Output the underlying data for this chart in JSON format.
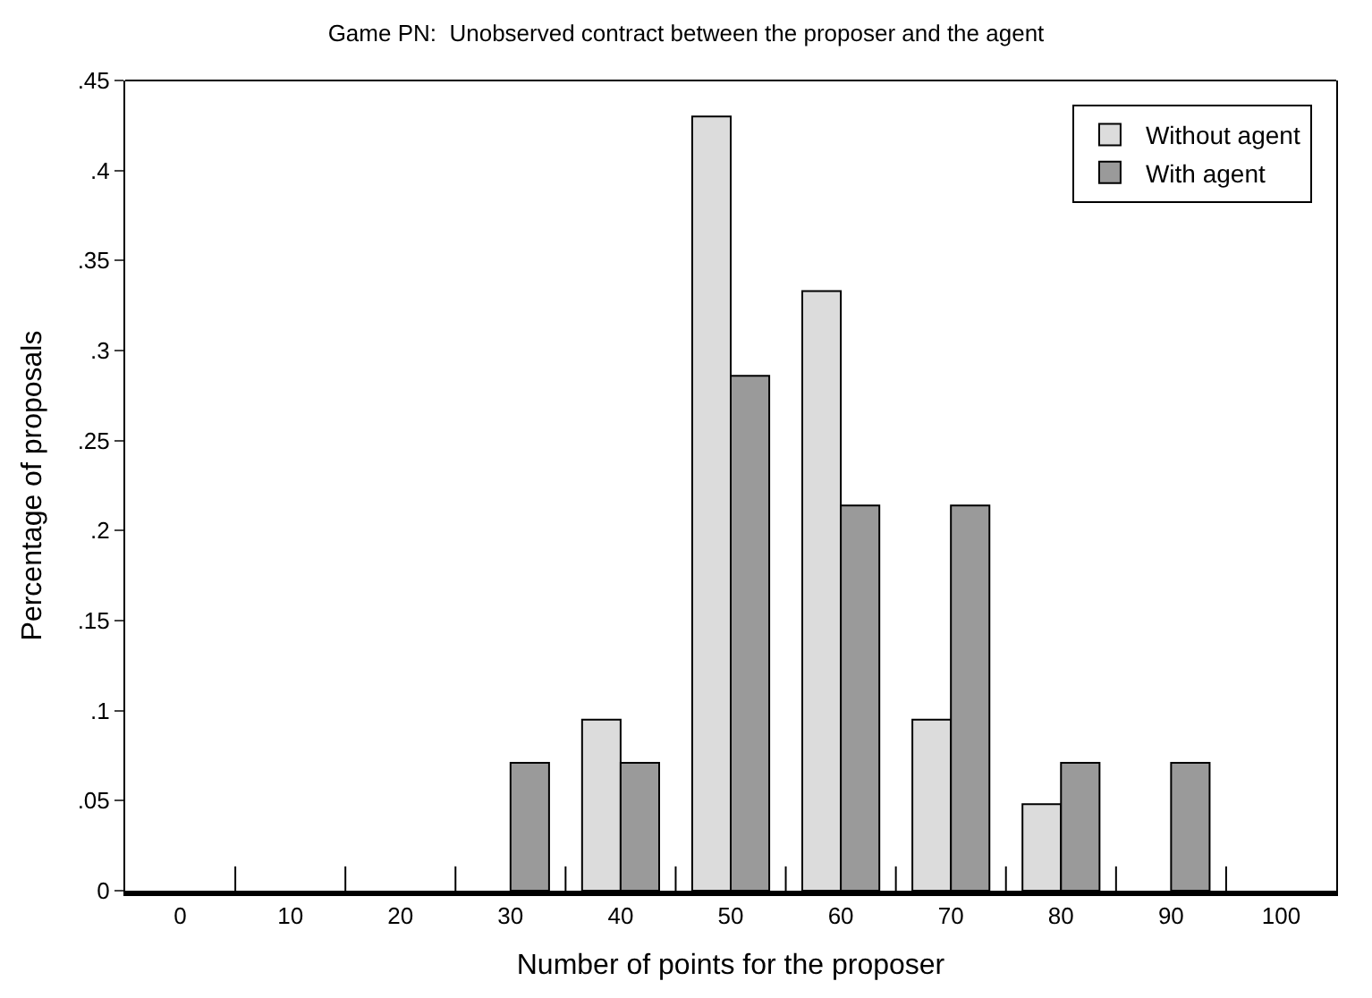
{
  "chart_data": {
    "type": "bar",
    "title": "Game PN:  Unobserved contract between the proposer and the agent",
    "xlabel": "Number of points for the proposer",
    "ylabel": "Percentage of proposals",
    "categories": [
      "0",
      "10",
      "20",
      "30",
      "40",
      "50",
      "60",
      "70",
      "80",
      "90",
      "100"
    ],
    "series": [
      {
        "name": "Without agent",
        "color": "#dcdcdc",
        "values": [
          null,
          null,
          null,
          null,
          0.095,
          0.43,
          0.333,
          0.095,
          0.048,
          null,
          null
        ]
      },
      {
        "name": "With agent",
        "color": "#9a9a9a",
        "values": [
          null,
          null,
          null,
          0.071,
          0.071,
          0.286,
          0.214,
          0.214,
          0.071,
          0.071,
          null
        ]
      }
    ],
    "ylim": [
      0,
      0.45
    ],
    "yticks": [
      0,
      {
        "value": 0.05,
        "label": ".05"
      },
      {
        "value": 0.1,
        "label": ".1"
      },
      {
        "value": 0.15,
        "label": ".15"
      },
      {
        "value": 0.2,
        "label": ".2"
      },
      {
        "value": 0.25,
        "label": ".25"
      },
      {
        "value": 0.3,
        "label": ".3"
      },
      {
        "value": 0.35,
        "label": ".35"
      },
      {
        "value": 0.4,
        "label": ".4"
      },
      {
        "value": 0.45,
        "label": ".45"
      }
    ],
    "legend": "top right"
  }
}
